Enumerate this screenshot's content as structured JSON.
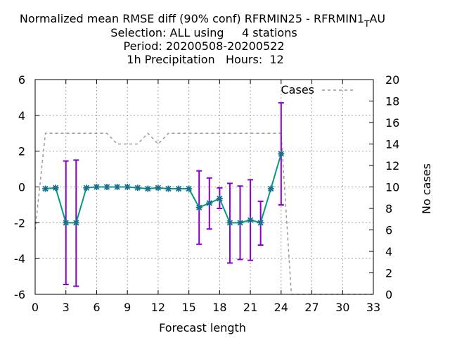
{
  "chart_data": {
    "type": "line",
    "title": {
      "line1_main": "Normalized mean RMSE diff (90% conf) RFRMIN25 - RFRMIN1",
      "line1_sub": "T",
      "line1_tail": "AU",
      "line2": "Selection: ALL using     4 stations",
      "line3": "Period: 20200508-20200522",
      "line4": "1h Precipitation   Hours:  12"
    },
    "xlabel": "Forecast length",
    "ylabel": "",
    "y2label": "No cases",
    "xlim": [
      0,
      33
    ],
    "ylim": [
      -6,
      6
    ],
    "y2lim": [
      0,
      20
    ],
    "xticks": [
      "0",
      "3",
      "6",
      "9",
      "12",
      "15",
      "18",
      "21",
      "24",
      "27",
      "30",
      "33"
    ],
    "yticks": [
      "-6",
      "-4",
      "-2",
      "0",
      "2",
      "4",
      "6"
    ],
    "y2ticks": [
      "0",
      "2",
      "4",
      "6",
      "8",
      "10",
      "12",
      "14",
      "16",
      "18",
      "20"
    ],
    "grid": true,
    "legend_position": "top-right",
    "series": [
      {
        "name": "Cases",
        "axis": "y2",
        "style": "dashed",
        "color": "#999999",
        "x": [
          0,
          1,
          2,
          3,
          4,
          5,
          6,
          7,
          8,
          9,
          10,
          11,
          12,
          13,
          14,
          15,
          16,
          17,
          18,
          19,
          20,
          21,
          22,
          23,
          24,
          25,
          26,
          27,
          28,
          29,
          30,
          31,
          32,
          33
        ],
        "values": [
          6,
          15,
          15,
          15,
          15,
          15,
          15,
          15,
          14,
          14,
          14,
          15,
          14,
          15,
          15,
          15,
          15,
          15,
          15,
          15,
          15,
          15,
          15,
          15,
          15,
          0,
          0,
          0,
          0,
          0,
          0,
          0,
          0,
          0
        ]
      },
      {
        "name": "",
        "axis": "y",
        "style": "line-with-errorbars",
        "color": "#009b82",
        "errorbar_color": "#8800cc",
        "x": [
          1,
          2,
          3,
          4,
          5,
          6,
          7,
          8,
          9,
          10,
          11,
          12,
          13,
          14,
          15,
          16,
          17,
          18,
          19,
          20,
          21,
          22,
          23,
          24
        ],
        "values": [
          -0.1,
          -0.05,
          -2.0,
          -2.0,
          -0.05,
          0.0,
          0.0,
          0.0,
          0.0,
          -0.05,
          -0.1,
          -0.05,
          -0.1,
          -0.1,
          -0.1,
          -1.15,
          -0.9,
          -0.65,
          -2.0,
          -2.0,
          -1.85,
          -2.0,
          -0.1,
          1.85
        ],
        "err_low": [
          -0.1,
          -0.05,
          -5.45,
          -5.55,
          -0.05,
          0.0,
          0.0,
          0.0,
          0.0,
          -0.05,
          -0.1,
          -0.05,
          -0.1,
          -0.1,
          -0.1,
          -3.2,
          -2.35,
          -1.2,
          -4.25,
          -4.05,
          -4.1,
          -3.25,
          -0.1,
          -1.0
        ],
        "err_high": [
          -0.1,
          -0.05,
          1.45,
          1.5,
          -0.05,
          0.0,
          0.0,
          0.0,
          0.0,
          -0.05,
          -0.1,
          -0.05,
          -0.1,
          -0.1,
          -0.1,
          0.9,
          0.5,
          -0.05,
          0.2,
          0.05,
          0.4,
          -0.8,
          -0.1,
          4.7
        ]
      }
    ]
  }
}
